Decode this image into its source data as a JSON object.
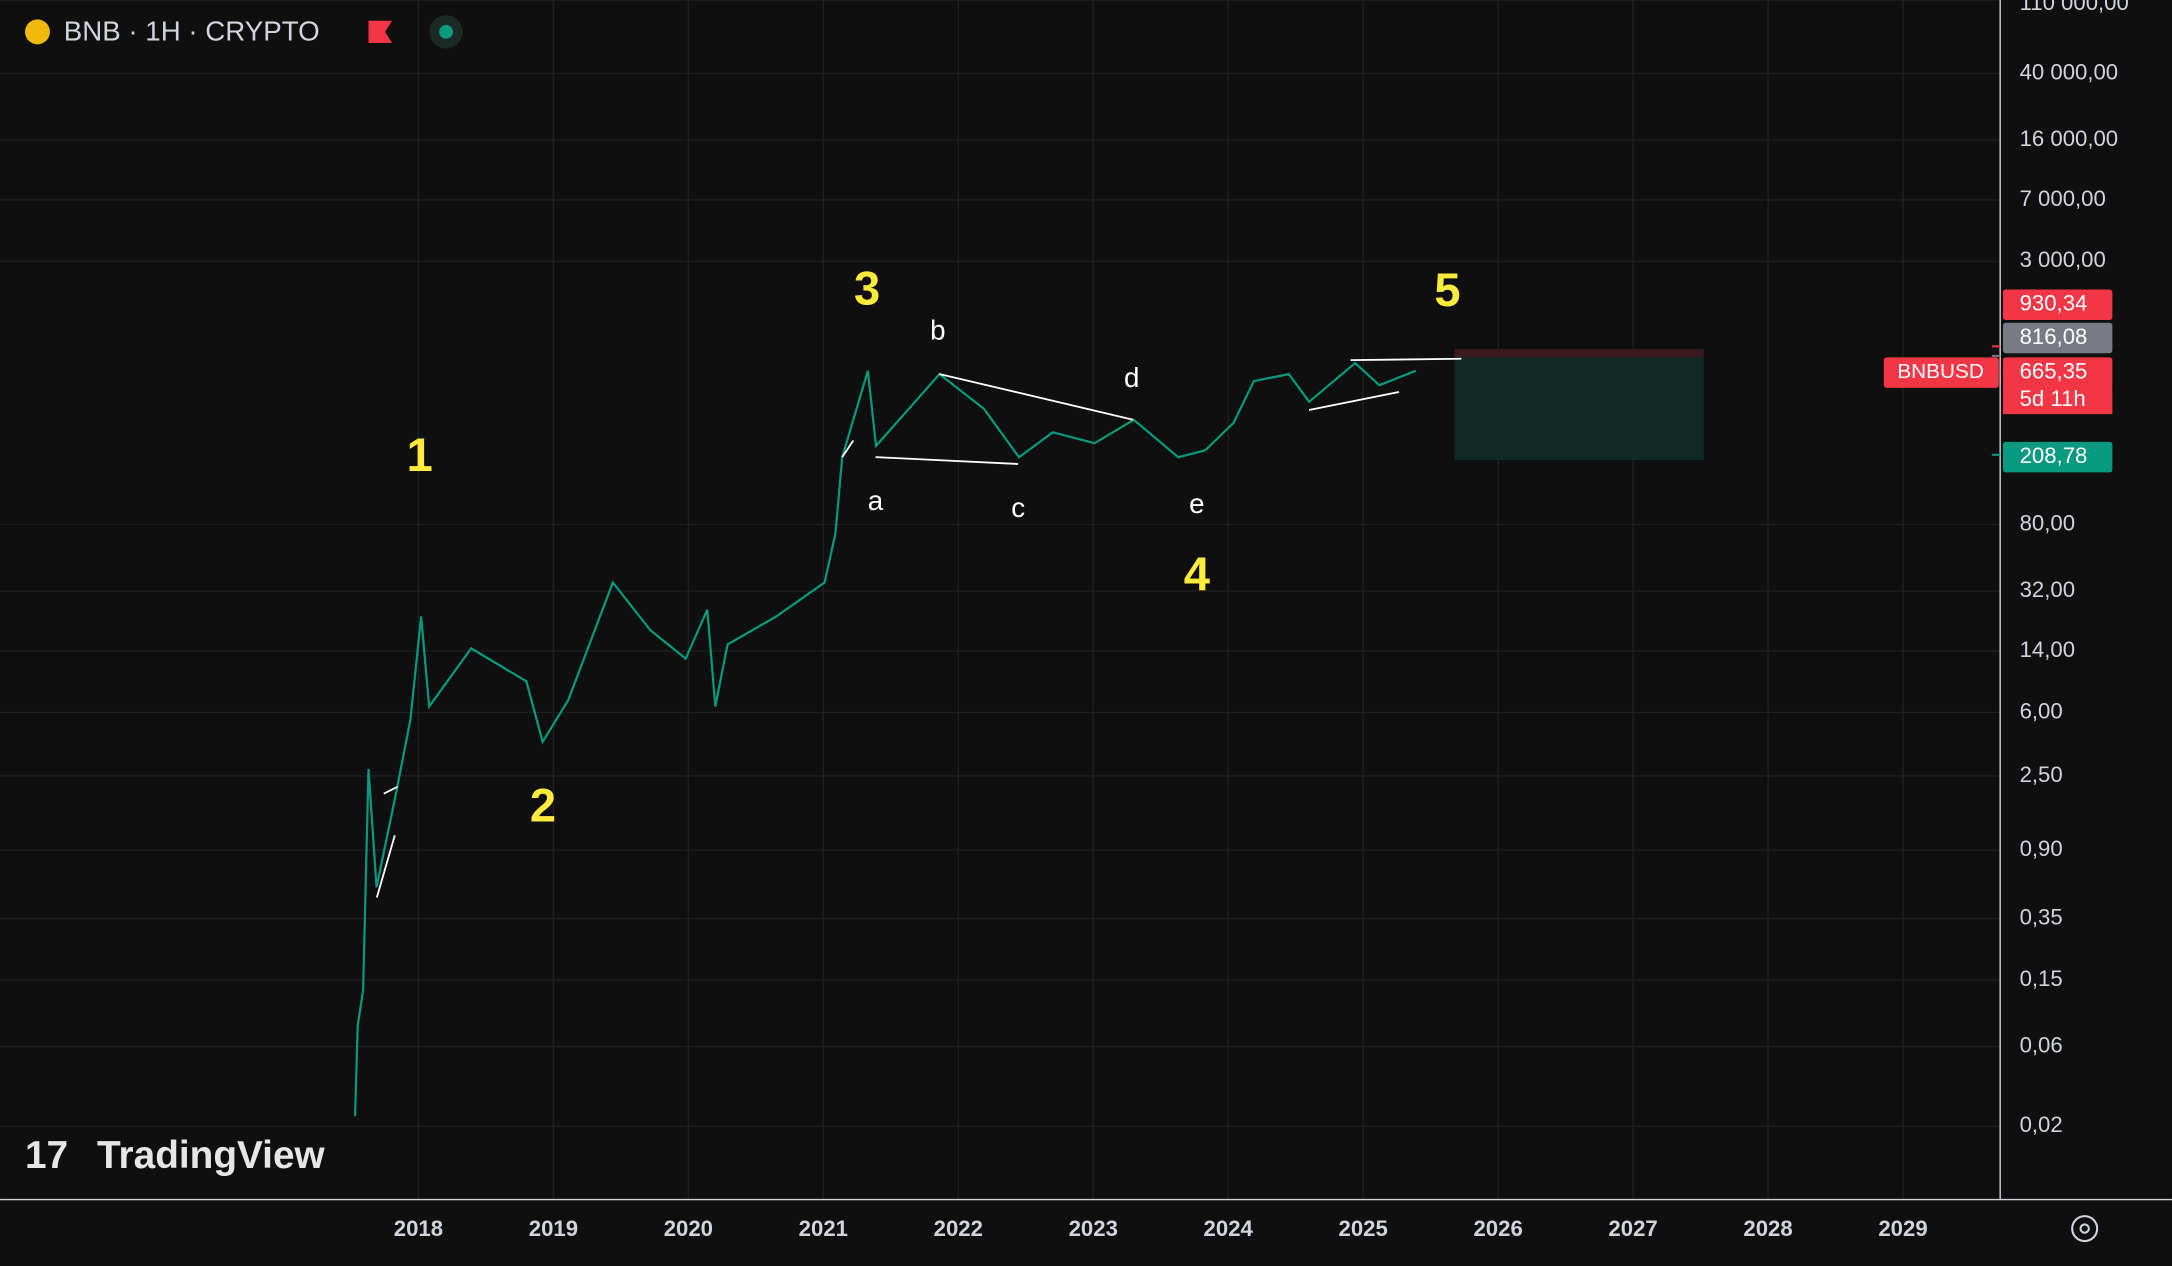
{
  "header": {
    "symbol": "BNB · 1H · CRYPTO"
  },
  "branding": {
    "logo": "TradingView"
  },
  "chart_data": {
    "type": "line",
    "log_scale": true,
    "grid": true,
    "color": "#089981",
    "x": [
      2017.53,
      2017.55,
      2017.59,
      2017.63,
      2017.69,
      2017.83,
      2017.94,
      2018.02,
      2018.08,
      2018.39,
      2018.8,
      2018.92,
      2019.11,
      2019.44,
      2019.72,
      2019.98,
      2020.14,
      2020.2,
      2020.29,
      2020.65,
      2021.01,
      2021.09,
      2021.14,
      2021.33,
      2021.39,
      2021.68,
      2021.86,
      2022.19,
      2022.45,
      2022.7,
      2023.01,
      2023.3,
      2023.63,
      2023.83,
      2024.04,
      2024.19,
      2024.45,
      2024.6,
      2024.94,
      2025.12,
      2025.39
    ],
    "values": [
      0.023,
      0.08,
      0.13,
      2.75,
      0.54,
      1.9,
      5.4,
      22.5,
      6.5,
      14.5,
      9.2,
      4.0,
      7.1,
      36,
      18.6,
      12.6,
      24.7,
      6.5,
      15.3,
      22.5,
      36,
      70.6,
      202,
      665,
      236,
      433,
      635,
      394,
      202,
      285,
      245,
      338,
      202,
      222,
      325,
      577,
      635,
      433,
      740,
      545,
      665
    ],
    "xlim": [
      2014.9,
      2029.72
    ],
    "xticks": [
      2018,
      2019,
      2020,
      2021,
      2022,
      2023,
      2024,
      2025,
      2026,
      2027,
      2028,
      2029
    ],
    "ylim": [
      0.0073,
      110000
    ],
    "yticks": [
      {
        "value": 110000,
        "label": "110 000,00"
      },
      {
        "value": 40000,
        "label": "40 000,00"
      },
      {
        "value": 16000,
        "label": "16 000,00"
      },
      {
        "value": 7000,
        "label": "7 000,00"
      },
      {
        "value": 3000,
        "label": "3 000,00"
      },
      {
        "value": 80,
        "label": "80,00"
      },
      {
        "value": 32,
        "label": "32,00"
      },
      {
        "value": 14,
        "label": "14,00"
      },
      {
        "value": 6,
        "label": "6,00"
      },
      {
        "value": 2.5,
        "label": "2,50"
      },
      {
        "value": 0.9,
        "label": "0,90"
      },
      {
        "value": 0.35,
        "label": "0,35"
      },
      {
        "value": 0.15,
        "label": "0,15"
      },
      {
        "value": 0.06,
        "label": "0,06"
      },
      {
        "value": 0.02,
        "label": "0,02"
      }
    ],
    "price_labels": [
      {
        "value": 930.34,
        "label": "930,34",
        "color": "#f23645"
      },
      {
        "value": 816.08,
        "label": "816,08",
        "color": "#787b86"
      },
      {
        "value": 665.35,
        "label": "665,35",
        "color": "#f23645"
      },
      {
        "value": 208.78,
        "label": "208,78",
        "color": "#089981"
      }
    ],
    "symbol_tag": "BNBUSD",
    "countdown": "5d 11h",
    "wave_labels": [
      "1",
      "2",
      "3",
      "4",
      "5"
    ],
    "sub_wave_labels": [
      "a",
      "b",
      "c",
      "d",
      "e"
    ]
  }
}
